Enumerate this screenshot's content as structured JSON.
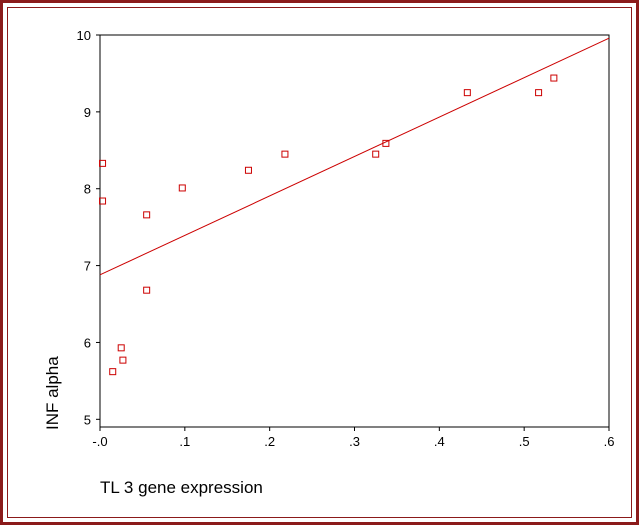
{
  "chart_data": {
    "type": "scatter",
    "title": "",
    "xlabel": "TL 3 gene expression",
    "ylabel": "INF alpha",
    "xlim": [
      0.0,
      0.6
    ],
    "ylim": [
      4.9,
      10.0
    ],
    "x_ticks": [
      0.0,
      0.1,
      0.2,
      0.3,
      0.4,
      0.5,
      0.6
    ],
    "x_tick_labels": [
      "-.0",
      ".1",
      ".2",
      ".3",
      ".4",
      ".5",
      ".6"
    ],
    "y_ticks": [
      5,
      6,
      7,
      8,
      9,
      10
    ],
    "y_tick_labels": [
      "5",
      "6",
      "7",
      "8",
      "9",
      "10"
    ],
    "grid": false,
    "points": [
      {
        "x": 0.003,
        "y": 8.33
      },
      {
        "x": 0.003,
        "y": 7.84
      },
      {
        "x": 0.015,
        "y": 5.62
      },
      {
        "x": 0.025,
        "y": 5.93
      },
      {
        "x": 0.027,
        "y": 5.77
      },
      {
        "x": 0.055,
        "y": 7.66
      },
      {
        "x": 0.055,
        "y": 6.68
      },
      {
        "x": 0.097,
        "y": 8.01
      },
      {
        "x": 0.175,
        "y": 8.24
      },
      {
        "x": 0.218,
        "y": 8.45
      },
      {
        "x": 0.325,
        "y": 8.45
      },
      {
        "x": 0.337,
        "y": 8.59
      },
      {
        "x": 0.433,
        "y": 9.25
      },
      {
        "x": 0.517,
        "y": 9.25
      },
      {
        "x": 0.535,
        "y": 9.44
      }
    ],
    "fit_line": {
      "intercept": 6.88,
      "slope": 5.13
    },
    "colors": {
      "marker": "#cc0000",
      "line": "#cc0000",
      "frame": "#8b1a1a"
    }
  }
}
